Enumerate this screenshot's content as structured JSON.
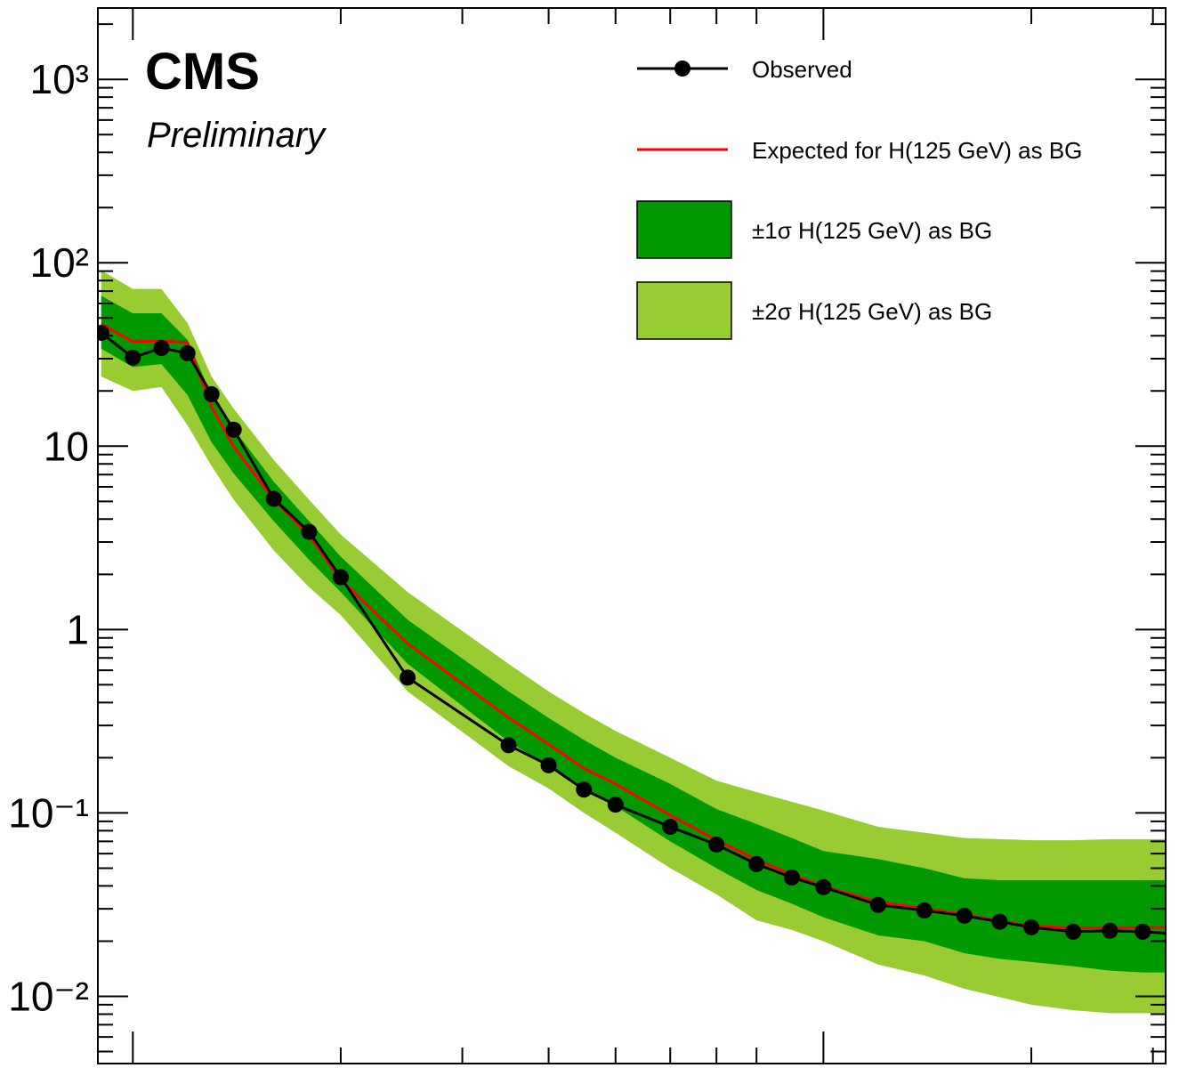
{
  "chart_data": {
    "type": "line",
    "title": "CMS",
    "subtitle": "Preliminary",
    "x": [
      90,
      100,
      110,
      120,
      130,
      140,
      160,
      180,
      200,
      250,
      350,
      400,
      450,
      500,
      600,
      700,
      800,
      900,
      1000,
      1200,
      1400,
      1600,
      1800,
      2000,
      2300,
      2600,
      2900,
      3200
    ],
    "series": [
      {
        "name": "Observed",
        "color": "#000000",
        "markers": true,
        "values": [
          41.5,
          30.4,
          34.3,
          32.1,
          19.2,
          12.3,
          5.16,
          3.41,
          1.93,
          0.547,
          0.234,
          0.182,
          0.134,
          0.111,
          0.084,
          0.0672,
          0.0526,
          0.0445,
          0.0394,
          0.0315,
          0.0294,
          0.0275,
          0.0255,
          0.0238,
          0.0225,
          0.0228,
          0.0225,
          0.022
        ]
      },
      {
        "name": "Expected for H(125 GeV) as BG",
        "color": "#ff0000",
        "values": [
          46.4,
          37.1,
          37.5,
          36.7,
          16.4,
          9.95,
          5.1,
          3.26,
          1.87,
          0.837,
          0.331,
          0.237,
          0.175,
          0.144,
          0.0972,
          0.0712,
          0.0556,
          0.046,
          0.0398,
          0.0326,
          0.0301,
          0.0279,
          0.0258,
          0.0241,
          0.0236,
          0.0237,
          0.0237,
          0.0237
        ]
      },
      {
        "name": "±1σ H(125 GeV) as BG",
        "color": "#009900",
        "low": [
          34,
          27,
          28,
          19,
          10.5,
          7.1,
          3.9,
          2.4,
          1.6,
          0.65,
          0.245,
          0.18,
          0.136,
          0.109,
          0.07,
          0.05,
          0.038,
          0.032,
          0.027,
          0.0215,
          0.02,
          0.0172,
          0.016,
          0.0154,
          0.0146,
          0.0138,
          0.0135,
          0.0135
        ],
        "high": [
          66,
          53,
          53,
          38,
          19,
          12.4,
          6.4,
          3.9,
          2.5,
          1.13,
          0.46,
          0.33,
          0.25,
          0.2,
          0.144,
          0.105,
          0.087,
          0.073,
          0.062,
          0.056,
          0.05,
          0.044,
          0.043,
          0.043,
          0.043,
          0.043,
          0.043,
          0.043
        ]
      },
      {
        "name": "±2σ H(125 GeV) as BG",
        "color": "#99cc33",
        "low": [
          24,
          20,
          21,
          13,
          7.8,
          5.1,
          2.7,
          1.7,
          1.2,
          0.46,
          0.18,
          0.136,
          0.1,
          0.078,
          0.05,
          0.036,
          0.026,
          0.023,
          0.02,
          0.0149,
          0.013,
          0.011,
          0.0099,
          0.009,
          0.0084,
          0.0081,
          0.0081,
          0.0081
        ],
        "high": [
          91,
          72,
          72,
          47,
          24,
          16,
          8.4,
          5.1,
          3.3,
          1.6,
          0.65,
          0.46,
          0.35,
          0.28,
          0.2,
          0.15,
          0.13,
          0.115,
          0.103,
          0.084,
          0.078,
          0.073,
          0.072,
          0.071,
          0.071,
          0.072,
          0.072,
          0.072
        ]
      }
    ],
    "xlim": [
      89,
      3130
    ],
    "xticks": [
      100,
      200,
      300,
      400,
      500,
      600,
      700,
      800,
      1000,
      2000,
      3000
    ],
    "xscale": "log",
    "ylim": [
      0.0043,
      2450
    ],
    "yticks": [
      {
        "value": 0.01,
        "label": "10⁻²"
      },
      {
        "value": 0.1,
        "label": "10⁻¹"
      },
      1,
      10,
      {
        "value": 100,
        "label": "10²"
      },
      {
        "value": 1000,
        "label": "10³"
      }
    ],
    "yscale": "log",
    "legend": "upper right"
  }
}
